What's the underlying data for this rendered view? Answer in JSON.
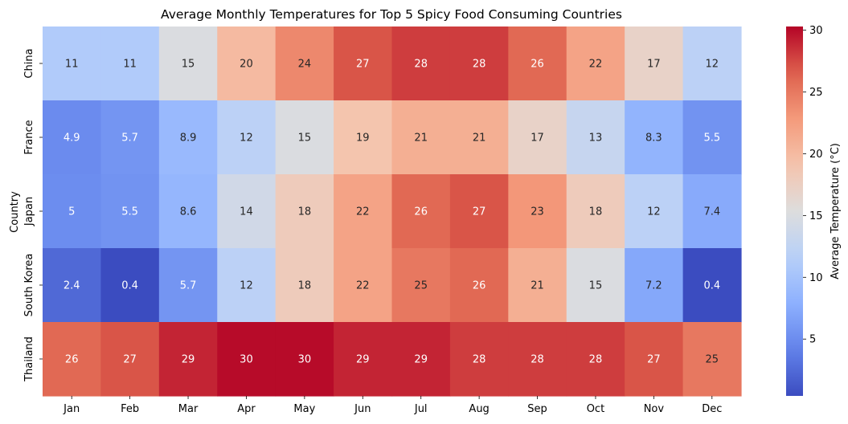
{
  "chart_data": {
    "type": "heatmap",
    "title": "Average Monthly Temperatures for Top 5 Spicy Food Consuming Countries",
    "xlabel": "",
    "ylabel": "Country",
    "x_categories": [
      "Jan",
      "Feb",
      "Mar",
      "Apr",
      "May",
      "Jun",
      "Jul",
      "Aug",
      "Sep",
      "Oct",
      "Nov",
      "Dec"
    ],
    "y_categories": [
      "China",
      "France",
      "Japan",
      "South Korea",
      "Thailand"
    ],
    "values": [
      [
        11,
        11,
        15,
        20,
        24,
        27,
        28,
        28,
        26,
        22,
        17,
        12
      ],
      [
        4.9,
        5.7,
        8.9,
        12,
        15,
        19,
        21,
        21,
        17,
        13,
        8.3,
        5.5
      ],
      [
        5,
        5.5,
        8.6,
        14,
        18,
        22,
        26,
        27,
        23,
        18,
        12,
        7.4
      ],
      [
        2.4,
        0.4,
        5.7,
        12,
        18,
        22,
        25,
        26,
        21,
        15,
        7.2,
        0.4
      ],
      [
        26,
        27,
        29,
        30,
        30,
        29,
        29,
        28,
        28,
        28,
        27,
        25
      ]
    ],
    "annotations": true,
    "colormap": "coolwarm",
    "colorbar": {
      "label": "Average Temperature (°C)",
      "range": [
        0.4,
        30.3
      ],
      "ticks": [
        5,
        10,
        15,
        20,
        25,
        30
      ]
    },
    "grid": false
  }
}
